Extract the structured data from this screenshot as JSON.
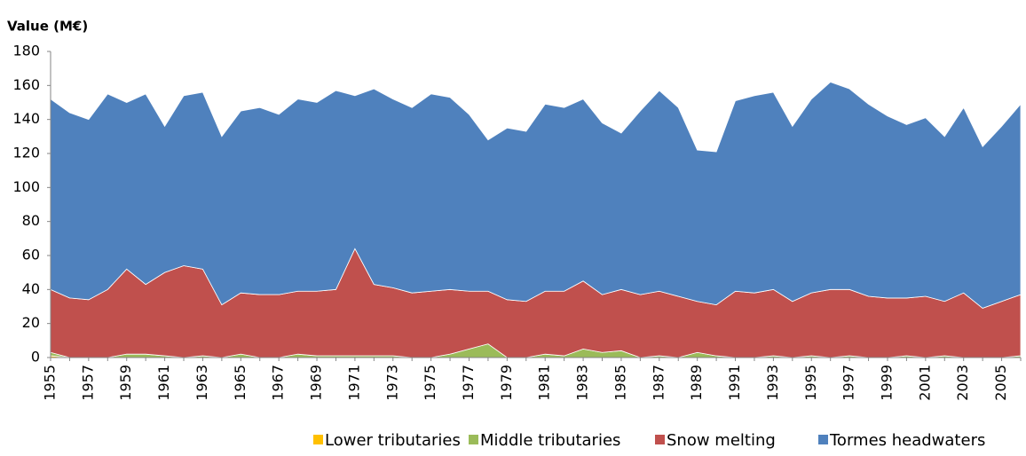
{
  "chart_data": {
    "type": "stacked_area",
    "y_axis_label": "Value (M€)",
    "categories": [
      "1955",
      null,
      "1957",
      null,
      "1959",
      null,
      "1961",
      null,
      "1963",
      null,
      "1965",
      null,
      "1967",
      null,
      "1969",
      null,
      "1971",
      null,
      "1973",
      null,
      "1975",
      null,
      "1977",
      null,
      "1979",
      null,
      "1981",
      null,
      "1983",
      null,
      "1985",
      null,
      "1987",
      null,
      "1989",
      null,
      "1991",
      null,
      "1993",
      null,
      "1995",
      null,
      "1997",
      null,
      "1999",
      null,
      "2001",
      null,
      "2003",
      null,
      "2005",
      null
    ],
    "series": [
      {
        "name": "Lower tributaries",
        "color": "#ffc000",
        "values": [
          1,
          0,
          0,
          0,
          0,
          0,
          0,
          0,
          0,
          0,
          0,
          0,
          0,
          0,
          0,
          0,
          0,
          0,
          0,
          0,
          0,
          0,
          0,
          0,
          0,
          0,
          0,
          0,
          0,
          0,
          0,
          0,
          0,
          0,
          0,
          0,
          0,
          0,
          0,
          0,
          0,
          0,
          0,
          0,
          0,
          0,
          0,
          0,
          0,
          0,
          0,
          0
        ]
      },
      {
        "name": "Middle tributaries",
        "color": "#9bbb59",
        "values": [
          2,
          0,
          0,
          0,
          2,
          2,
          1,
          0,
          1,
          0,
          2,
          0,
          0,
          2,
          1,
          1,
          1,
          1,
          1,
          0,
          0,
          2,
          5,
          8,
          0,
          0,
          2,
          1,
          5,
          3,
          4,
          0,
          1,
          0,
          3,
          1,
          0,
          0,
          1,
          0,
          1,
          0,
          1,
          0,
          0,
          1,
          0,
          1,
          0,
          0,
          0,
          1
        ]
      },
      {
        "name": "Snow melting",
        "color": "#c0504d",
        "values": [
          37,
          35,
          34,
          40,
          50,
          41,
          49,
          54,
          51,
          31,
          36,
          37,
          37,
          37,
          38,
          39,
          63,
          42,
          40,
          38,
          39,
          38,
          34,
          31,
          34,
          33,
          37,
          38,
          40,
          34,
          36,
          37,
          38,
          36,
          30,
          30,
          39,
          38,
          39,
          33,
          37,
          40,
          39,
          36,
          35,
          34,
          36,
          32,
          38,
          29,
          33,
          36
        ]
      },
      {
        "name": "Tormes headwaters",
        "color": "#4f81bd",
        "values": [
          112,
          109,
          106,
          115,
          98,
          112,
          86,
          100,
          104,
          99,
          107,
          110,
          106,
          113,
          111,
          117,
          90,
          115,
          111,
          109,
          116,
          113,
          104,
          89,
          101,
          100,
          110,
          108,
          107,
          101,
          92,
          108,
          118,
          111,
          89,
          90,
          112,
          116,
          116,
          103,
          114,
          122,
          118,
          113,
          107,
          102,
          105,
          97,
          109,
          95,
          103,
          112
        ]
      }
    ],
    "ylim": [
      0,
      180
    ],
    "yticks": [
      0,
      20,
      40,
      60,
      80,
      100,
      120,
      140,
      160,
      180
    ],
    "grid": false
  }
}
